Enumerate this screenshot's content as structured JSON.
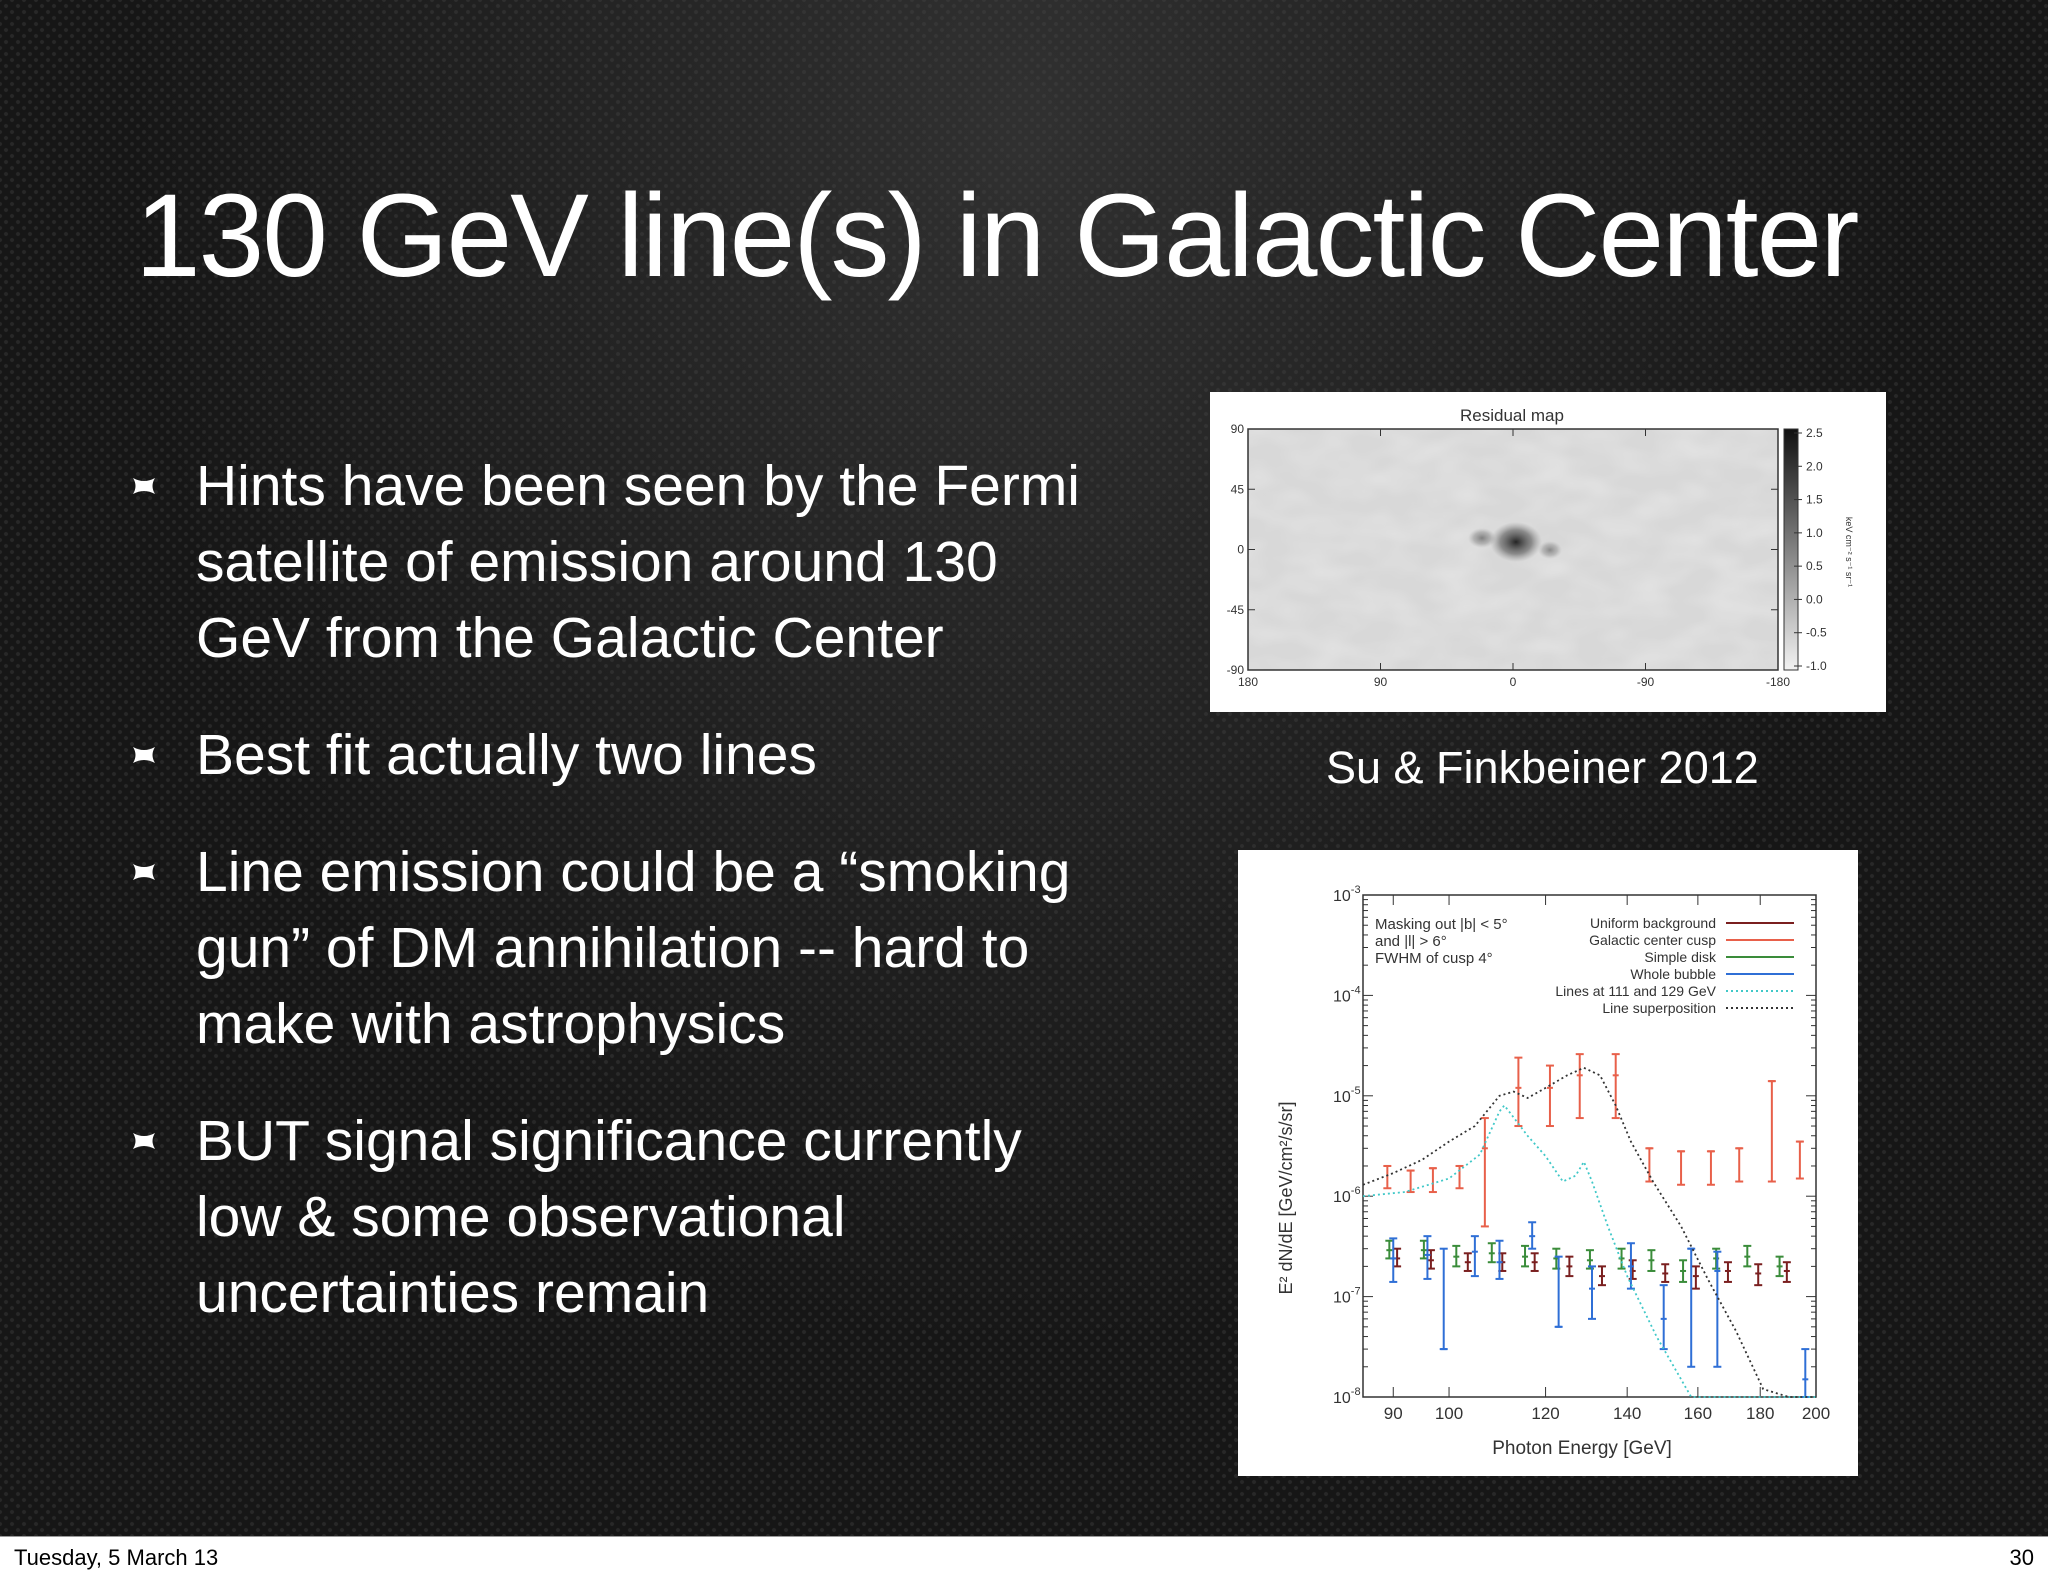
{
  "slide": {
    "title": "130 GeV line(s) in Galactic Center",
    "bullets": [
      "Hints have been seen by the Fermi\nsatellite of emission around 130\nGeV from the Galactic Center",
      "Best fit actually two lines",
      "Line emission could be a “smoking\ngun” of DM annihilation -- hard to\nmake with astrophysics",
      "BUT signal significance currently\nlow & some observational\nuncertainties remain"
    ],
    "caption": "Su & Finkbeiner 2012"
  },
  "footer": {
    "date": "Tuesday, 5 March 13",
    "page": "30"
  },
  "colors": {
    "background": "#161616",
    "text": "#ffffff"
  },
  "residual_map": {
    "title": "Residual map",
    "y_ticks": [
      "90",
      "45",
      "0",
      "-45",
      "-90"
    ],
    "x_ticks": [
      "180",
      "90",
      "0",
      "-90",
      "-180"
    ],
    "colorbar_ticks": [
      "2.5",
      "2.0",
      "1.5",
      "1.0",
      "0.5",
      "0.0",
      "-0.5",
      "-1.0"
    ],
    "colorbar_label": "keV cm⁻² s⁻¹ sr⁻¹"
  },
  "chart_data": {
    "type": "scatter",
    "xlabel": "Photon Energy [GeV]",
    "ylabel": "E² dN/dE [GeV/cm²/s/sr]",
    "x_scale": "log",
    "y_scale": "log",
    "xlim": [
      85,
      200
    ],
    "ylim": [
      1e-08,
      0.001
    ],
    "x_ticks": [
      90,
      100,
      120,
      140,
      160,
      180,
      200
    ],
    "y_ticks": [
      {
        "value": 0.001,
        "base": "10",
        "exp": "-3"
      },
      {
        "value": 0.0001,
        "base": "10",
        "exp": "-4"
      },
      {
        "value": 1e-05,
        "base": "10",
        "exp": "-5"
      },
      {
        "value": 1e-06,
        "base": "10",
        "exp": "-6"
      },
      {
        "value": 1e-07,
        "base": "10",
        "exp": "-7"
      },
      {
        "value": 1e-08,
        "base": "10",
        "exp": "-8"
      }
    ],
    "annotation": [
      "Masking out |b| < 5°",
      "and |l| > 6°",
      "FWHM of cusp 4°"
    ],
    "legend_position": "top-right",
    "series": [
      {
        "name": "Uniform background",
        "color": "#7a1f1f",
        "points": [
          [
            91,
            2.4e-07,
            2e-07,
            3e-07
          ],
          [
            97,
            2.3e-07,
            1.9e-07,
            2.9e-07
          ],
          [
            104,
            2.2e-07,
            1.8e-07,
            2.7e-07
          ],
          [
            111,
            2.2e-07,
            1.8e-07,
            2.7e-07
          ],
          [
            118,
            2.2e-07,
            1.8e-07,
            2.7e-07
          ],
          [
            126,
            2e-07,
            1.6e-07,
            2.5e-07
          ],
          [
            134,
            1.6e-07,
            1.3e-07,
            2e-07
          ],
          [
            142,
            1.8e-07,
            1.5e-07,
            2.3e-07
          ],
          [
            151,
            1.7e-07,
            1.4e-07,
            2.1e-07
          ],
          [
            160,
            1.6e-07,
            1.2e-07,
            2e-07
          ],
          [
            170,
            1.8e-07,
            1.4e-07,
            2.2e-07
          ],
          [
            180,
            1.7e-07,
            1.3e-07,
            2.1e-07
          ],
          [
            190,
            1.8e-07,
            1.4e-07,
            2.2e-07
          ]
        ]
      },
      {
        "name": "Galactic center cusp",
        "color": "#e8604a",
        "points": [
          [
            89,
            2e-06,
            1.2e-06,
            2e-06
          ],
          [
            93,
            1.8e-06,
            1.1e-06,
            1.8e-06
          ],
          [
            97,
            1.9e-06,
            1.1e-06,
            1.9e-06
          ],
          [
            102,
            2e-06,
            1.2e-06,
            2e-06
          ],
          [
            107,
            3e-06,
            5e-07,
            6e-06
          ],
          [
            114,
            1.2e-05,
            5e-06,
            2.4e-05
          ],
          [
            121,
            1.2e-05,
            5e-06,
            2e-05
          ],
          [
            128,
            1.6e-05,
            6e-06,
            2.6e-05
          ],
          [
            137,
            1.6e-05,
            6e-06,
            2.6e-05
          ],
          [
            146,
            3e-06,
            1.4e-06,
            3e-06
          ],
          [
            155,
            2.8e-06,
            1.3e-06,
            2.8e-06
          ],
          [
            164,
            2.8e-06,
            1.3e-06,
            2.8e-06
          ],
          [
            173,
            3e-06,
            1.4e-06,
            3e-06
          ],
          [
            184,
            1.4e-05,
            1.4e-06,
            1.4e-05
          ],
          [
            194,
            3.5e-06,
            1.5e-06,
            3.5e-06
          ]
        ]
      },
      {
        "name": "Simple disk",
        "color": "#3a8c3a",
        "points": [
          [
            89,
            2.9e-07,
            2.4e-07,
            3.6e-07
          ],
          [
            95,
            2.9e-07,
            2.4e-07,
            3.6e-07
          ],
          [
            101,
            2.5e-07,
            2e-07,
            3.2e-07
          ],
          [
            108,
            2.7e-07,
            2.2e-07,
            3.4e-07
          ],
          [
            115,
            2.5e-07,
            2e-07,
            3.2e-07
          ],
          [
            122,
            2.4e-07,
            1.9e-07,
            3e-07
          ],
          [
            130,
            2.3e-07,
            1.9e-07,
            2.9e-07
          ],
          [
            138,
            2.4e-07,
            1.9e-07,
            3e-07
          ],
          [
            146,
            2.3e-07,
            1.8e-07,
            2.9e-07
          ],
          [
            155,
            1.8e-07,
            1.4e-07,
            2.3e-07
          ],
          [
            165,
            2.4e-07,
            1.9e-07,
            3e-07
          ],
          [
            175,
            2.5e-07,
            2e-07,
            3.2e-07
          ],
          [
            186,
            2e-07,
            1.6e-07,
            2.5e-07
          ]
        ]
      },
      {
        "name": "Whole bubble",
        "color": "#2f6fd6",
        "points": [
          [
            90,
            2.4e-07,
            1.4e-07,
            3.8e-07
          ],
          [
            96,
            2.6e-07,
            1.5e-07,
            4e-07
          ],
          [
            99,
            3e-08,
            3e-08,
            3e-07
          ],
          [
            105,
            2.8e-07,
            1.6e-07,
            4e-07
          ],
          [
            110,
            2.2e-07,
            1.5e-07,
            3.6e-07
          ],
          [
            117,
            4e-07,
            3e-07,
            5.5e-07
          ],
          [
            123,
            5e-08,
            5e-08,
            2.5e-07
          ],
          [
            131,
            1.2e-07,
            6e-08,
            2e-07
          ],
          [
            141,
            2e-07,
            1.2e-07,
            3.4e-07
          ],
          [
            150,
            6e-08,
            3e-08,
            1.3e-07
          ],
          [
            158,
            3e-07,
            2e-08,
            3e-07
          ],
          [
            166,
            1.8e-07,
            2e-08,
            2.8e-07
          ],
          [
            196,
            1.5e-08,
            1e-08,
            3e-08
          ]
        ]
      },
      {
        "name": "Lines at 111 and 129 GeV",
        "color": "#40c8c8",
        "x": [
          85,
          92,
          100,
          106,
          110,
          111,
          112,
          116,
          120,
          124,
          127,
          129,
          131,
          135,
          140,
          148,
          158,
          168,
          180,
          200
        ],
        "values": [
          1e-06,
          1.1e-06,
          1.5e-06,
          2.6e-06,
          7e-06,
          8e-06,
          7e-06,
          4e-06,
          2.5e-06,
          1.4e-06,
          1.6e-06,
          2.2e-06,
          1.4e-06,
          5e-07,
          1.6e-07,
          4e-08,
          1e-08,
          1e-08,
          1e-08,
          1e-08
        ]
      },
      {
        "name": "Line superposition",
        "color": "#333333",
        "x": [
          85,
          90,
          95,
          100,
          105,
          110,
          113,
          116,
          120,
          125,
          129,
          133,
          137,
          141,
          147,
          155,
          163,
          172,
          181,
          190,
          200
        ],
        "values": [
          1.3e-06,
          1.7e-06,
          2.3e-06,
          3.5e-06,
          5e-06,
          1e-05,
          1.1e-05,
          9.5e-06,
          1.2e-05,
          1.6e-05,
          1.9e-05,
          1.6e-05,
          8e-06,
          3.5e-06,
          1.4e-06,
          5e-07,
          1.5e-07,
          4.5e-08,
          1.2e-08,
          1e-08,
          1e-08
        ]
      }
    ]
  }
}
